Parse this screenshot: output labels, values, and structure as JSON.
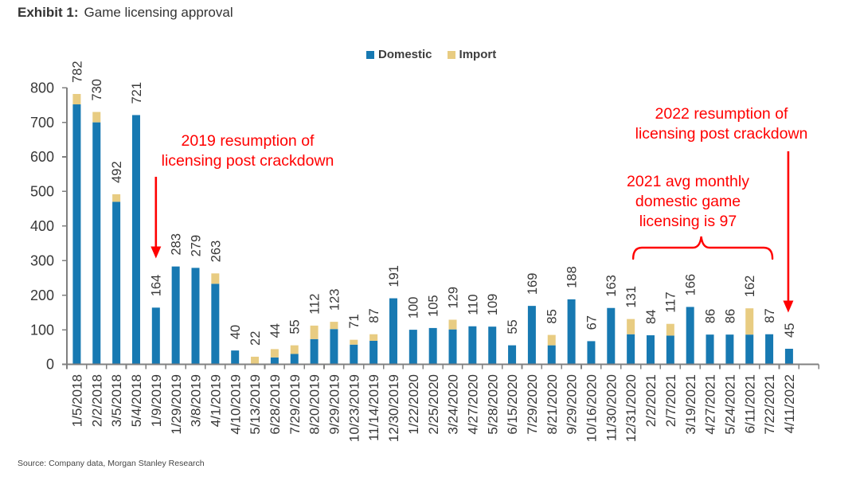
{
  "title": {
    "prefix": "Exhibit 1:",
    "text": "Game licensing approval"
  },
  "source": "Source: Company data, Morgan Stanley Research",
  "colors": {
    "domestic": "#1779b2",
    "import": "#e8cc82",
    "red": "#ff0000",
    "axis": "#808080",
    "label": "#383838"
  },
  "legend": [
    {
      "label": "Domestic",
      "color": "#1779b2"
    },
    {
      "label": "Import",
      "color": "#e8cc82"
    }
  ],
  "chart_data": {
    "type": "bar",
    "stacked": true,
    "title": "Game licensing approval",
    "xlabel": "",
    "ylabel": "",
    "ylim": [
      0,
      800
    ],
    "ytick_interval": 100,
    "grid": false,
    "legend_position": "top-center",
    "categories": [
      "1/5/2018",
      "2/2/2018",
      "3/5/2018",
      "5/4/2018",
      "1/9/2019",
      "1/29/2019",
      "3/8/2019",
      "4/1/2019",
      "4/10/2019",
      "5/13/2019",
      "6/28/2019",
      "7/29/2019",
      "8/20/2019",
      "9/29/2019",
      "10/23/2019",
      "11/14/2019",
      "12/30/2019",
      "1/22/2020",
      "2/25/2020",
      "3/24/2020",
      "4/27/2020",
      "5/28/2020",
      "6/15/2020",
      "7/29/2020",
      "8/21/2020",
      "9/29/2020",
      "10/16/2020",
      "11/30/2020",
      "12/31/2020",
      "2/2/2021",
      "2/7/2021",
      "3/19/2021",
      "4/27/2021",
      "5/24/2021",
      "6/11/2021",
      "7/22/2021",
      "4/11/2022"
    ],
    "series": [
      {
        "name": "Domestic",
        "values": [
          752,
          700,
          470,
          721,
          164,
          283,
          279,
          233,
          40,
          0,
          20,
          30,
          73,
          102,
          57,
          68,
          191,
          100,
          105,
          101,
          110,
          109,
          55,
          169,
          55,
          188,
          67,
          163,
          87,
          84,
          83,
          166,
          86,
          86,
          86,
          87,
          45
        ]
      },
      {
        "name": "Import",
        "values": [
          30,
          30,
          22,
          0,
          0,
          0,
          0,
          30,
          0,
          22,
          24,
          25,
          39,
          21,
          14,
          19,
          0,
          0,
          0,
          28,
          0,
          0,
          0,
          0,
          30,
          0,
          0,
          0,
          44,
          0,
          34,
          0,
          0,
          0,
          76,
          0,
          0
        ]
      }
    ],
    "totals": [
      782,
      730,
      492,
      721,
      164,
      283,
      279,
      263,
      40,
      22,
      44,
      55,
      112,
      123,
      71,
      87,
      191,
      100,
      105,
      129,
      110,
      109,
      55,
      169,
      85,
      188,
      67,
      163,
      131,
      84,
      117,
      166,
      86,
      86,
      162,
      87,
      45
    ]
  },
  "annotations": [
    {
      "id": "2019",
      "text": "2019 resumption of\nlicensing post crackdown",
      "target_category": "1/9/2019",
      "shape": "arrow-down"
    },
    {
      "id": "2022",
      "text": "2022 resumption of\nlicensing post crackdown",
      "target_category": "4/11/2022",
      "shape": "arrow-down"
    },
    {
      "id": "2021",
      "text": "2021 avg monthly\ndomestic game\nlicensing is 97",
      "from_category": "12/31/2020",
      "to_category": "7/22/2021",
      "shape": "brace"
    }
  ]
}
